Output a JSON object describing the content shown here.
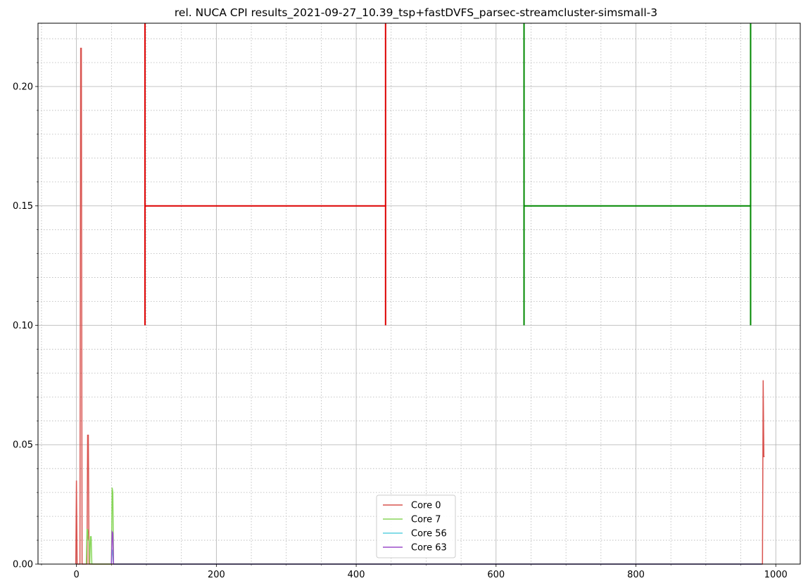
{
  "chart_data": {
    "type": "line",
    "title": "rel. NUCA CPI results_2021-09-27_10.39_tsp+fastDVFS_parsec-streamcluster-simsmall-3",
    "xlabel": "",
    "ylabel": "",
    "xlim": [
      -55,
      1035
    ],
    "ylim": [
      0,
      0.2265
    ],
    "x_ticks": [
      0,
      200,
      400,
      600,
      800,
      1000
    ],
    "x_tick_labels": [
      "0",
      "200",
      "400",
      "600",
      "800",
      "1000"
    ],
    "x_minor_step": 50,
    "y_ticks": [
      0.0,
      0.05,
      0.1,
      0.15,
      0.2
    ],
    "y_tick_labels": [
      "0.00",
      "0.05",
      "0.10",
      "0.15",
      "0.20"
    ],
    "y_minor_step": 0.01,
    "grid": true,
    "minor_grid": true,
    "legend_position": "lower-center",
    "series": [
      {
        "name": "Core 0",
        "color": "#d9534f",
        "points": [
          [
            -1,
            0
          ],
          [
            0,
            0.035
          ],
          [
            1,
            0
          ],
          [
            5,
            0
          ],
          [
            6,
            0.216
          ],
          [
            7,
            0.216
          ],
          [
            8,
            0
          ],
          [
            15,
            0
          ],
          [
            16,
            0.054
          ],
          [
            17,
            0.054
          ],
          [
            18,
            0
          ],
          [
            19,
            0
          ],
          [
            981,
            0
          ],
          [
            982,
            0.077
          ],
          [
            983,
            0.045
          ],
          [
            984,
            0.045
          ]
        ]
      },
      {
        "name": "Core 7",
        "color": "#88d65a",
        "points": [
          [
            14,
            0
          ],
          [
            15,
            0.0145
          ],
          [
            16,
            0.0145
          ],
          [
            17,
            0.01
          ],
          [
            18,
            0.01
          ],
          [
            19,
            0
          ],
          [
            20,
            0.0115
          ],
          [
            21,
            0.0115
          ],
          [
            22,
            0
          ],
          [
            50,
            0
          ],
          [
            51,
            0.032
          ],
          [
            52,
            0.03
          ],
          [
            53,
            0
          ],
          [
            980,
            0
          ]
        ]
      },
      {
        "name": "Core 56",
        "color": "#5bd0e0",
        "points": [
          [
            50,
            0
          ],
          [
            51,
            0.006
          ],
          [
            52,
            0.005
          ],
          [
            53,
            0
          ],
          [
            980,
            0
          ]
        ]
      },
      {
        "name": "Core 63",
        "color": "#9b4dca",
        "points": [
          [
            50,
            0
          ],
          [
            51,
            0.0135
          ],
          [
            52,
            0.013
          ],
          [
            53,
            0
          ],
          [
            980,
            0
          ]
        ]
      }
    ],
    "annotations": [
      {
        "color": "#dd0000",
        "x_start": 98,
        "x_end": 442,
        "y_bottom": 0.1,
        "y_top": 0.2265,
        "y_bar": 0.15
      },
      {
        "color": "#008800",
        "x_start": 640,
        "x_end": 964,
        "y_bottom": 0.1,
        "y_top": 0.2265,
        "y_bar": 0.15
      }
    ]
  }
}
